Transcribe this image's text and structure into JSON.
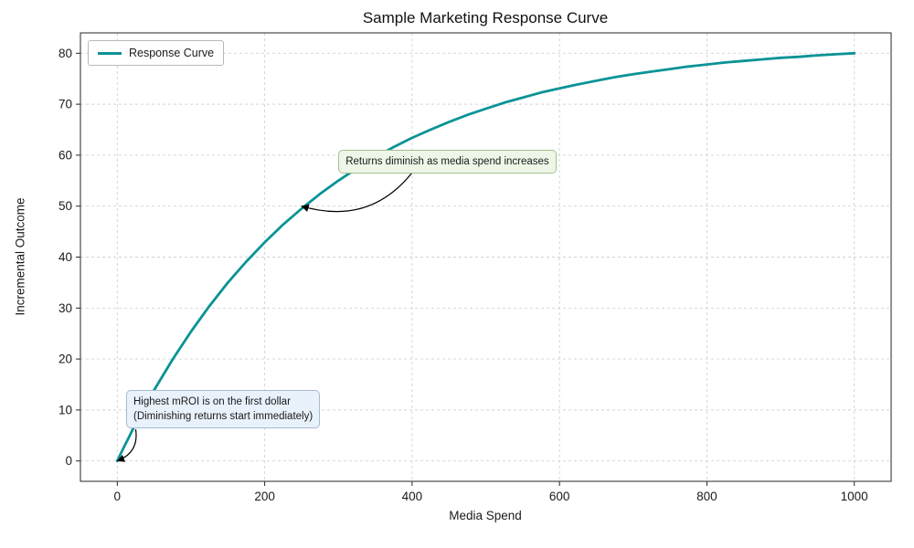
{
  "chart_data": {
    "type": "line",
    "title": "Sample Marketing Response Curve",
    "xlabel": "Media Spend",
    "ylabel": "Incremental Outcome",
    "xlim": [
      -50,
      1050
    ],
    "ylim": [
      -4,
      84
    ],
    "xticks": [
      0,
      200,
      400,
      600,
      800,
      1000
    ],
    "yticks": [
      0,
      10,
      20,
      30,
      40,
      50,
      60,
      70,
      80
    ],
    "grid": true,
    "legend_position": "upper left",
    "series": [
      {
        "name": "Response Curve",
        "color": "#0a9396",
        "x": [
          0,
          5,
          10,
          15,
          20,
          25,
          50,
          75,
          100,
          125,
          150,
          175,
          200,
          225,
          250,
          275,
          300,
          325,
          350,
          375,
          400,
          425,
          450,
          475,
          500,
          525,
          550,
          575,
          600,
          625,
          650,
          675,
          700,
          725,
          750,
          775,
          800,
          825,
          850,
          875,
          900,
          925,
          950,
          975,
          1000
        ],
        "y": [
          0,
          1.5,
          3.0,
          4.4,
          5.9,
          7.3,
          13.9,
          19.9,
          25.4,
          30.4,
          35.0,
          39.1,
          42.9,
          46.4,
          49.5,
          52.4,
          55.0,
          57.4,
          59.6,
          61.6,
          63.4,
          65.0,
          66.5,
          67.9,
          69.1,
          70.3,
          71.3,
          72.3,
          73.1,
          73.9,
          74.6,
          75.3,
          75.9,
          76.4,
          76.9,
          77.4,
          77.8,
          78.2,
          78.5,
          78.8,
          79.1,
          79.3,
          79.6,
          79.8,
          80.0
        ]
      }
    ],
    "annotations": [
      {
        "lines": [
          "Returns diminish as media spend increases"
        ],
        "target_xy": [
          250,
          50
        ],
        "text_xy": [
          300,
          61
        ],
        "arrow_from": [
          405,
          57.5
        ],
        "curvature": -0.35,
        "bg": "#eef6e7",
        "border": "#a3bf90"
      },
      {
        "lines": [
          "Highest mROI is on the first dollar",
          "(Diminishing returns start immediately)"
        ],
        "target_xy": [
          0,
          0
        ],
        "text_xy": [
          12,
          14.0
        ],
        "arrow_from": [
          25,
          6.2
        ],
        "curvature": -0.4,
        "bg": "#e9f1fb",
        "border": "#a6bacf"
      }
    ]
  }
}
